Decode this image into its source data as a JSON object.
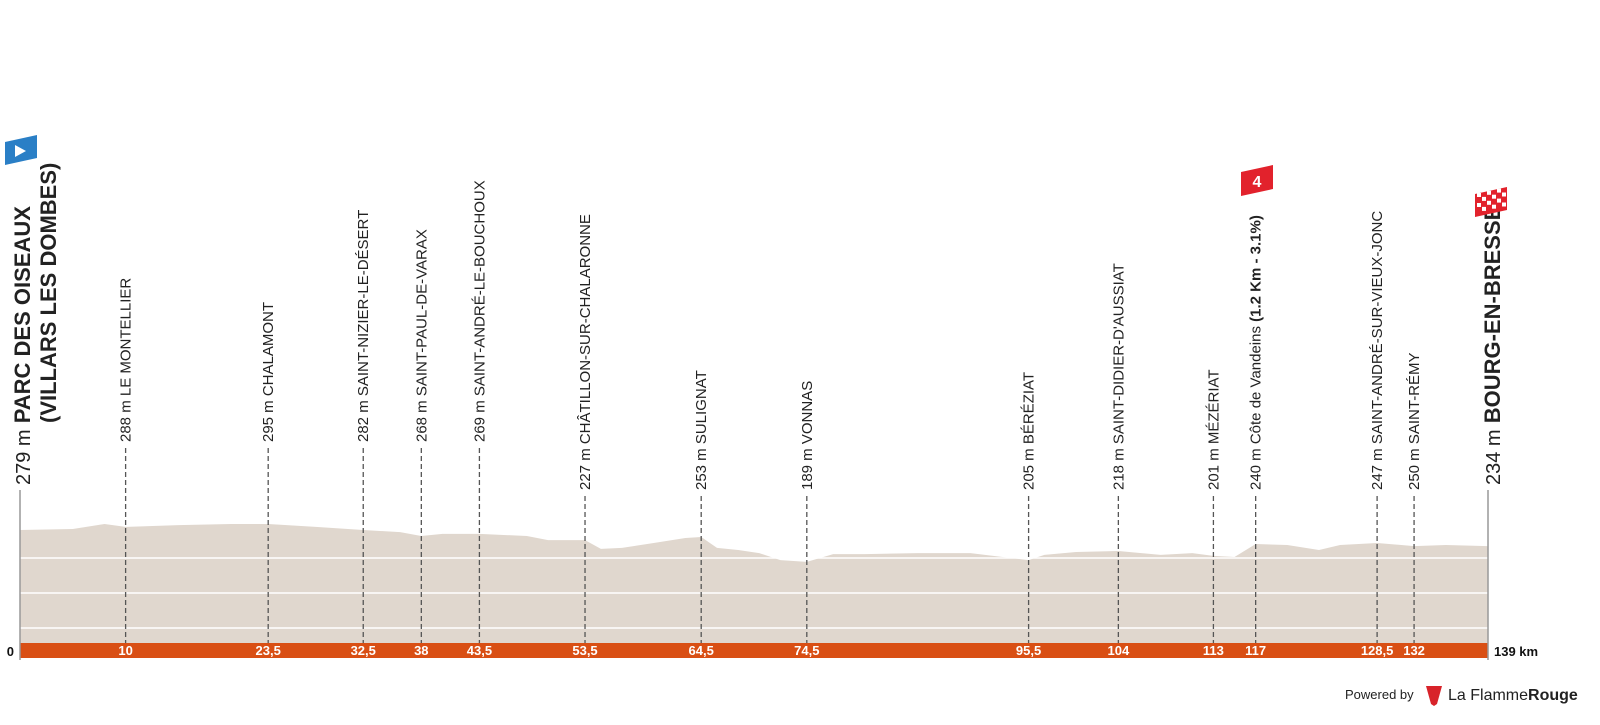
{
  "chart_data": {
    "type": "profile",
    "xlim": [
      0,
      139
    ],
    "ylim": [
      0,
      300
    ],
    "ygrid": [
      0,
      100,
      200
    ],
    "area_color": "#e0d7ce",
    "axis_color": "#d94f14",
    "x": [
      0,
      5,
      8,
      10,
      15,
      20,
      23.5,
      28,
      32.5,
      36,
      38,
      40,
      43.5,
      48,
      50,
      53.5,
      55,
      57,
      60,
      63,
      64.5,
      66,
      68,
      70,
      72,
      74.5,
      77,
      80,
      85,
      90,
      95.5,
      97,
      100,
      104,
      108,
      111,
      113,
      115,
      117,
      120,
      123,
      125,
      128.5,
      132,
      135,
      139
    ],
    "values": [
      280,
      283,
      297,
      289,
      294,
      297,
      297,
      289,
      280,
      274,
      263,
      269,
      269,
      263,
      251,
      251,
      226,
      229,
      243,
      257,
      260,
      229,
      223,
      214,
      194,
      189,
      211,
      211,
      214,
      214,
      194,
      209,
      217,
      220,
      209,
      214,
      206,
      203,
      240,
      237,
      223,
      237,
      243,
      234,
      237,
      234
    ],
    "xticks": [
      0,
      10,
      {
        "value": 23.5,
        "label": "23,5"
      },
      {
        "value": 32.5,
        "label": "32,5"
      },
      38,
      {
        "value": 43.5,
        "label": "43,5"
      },
      {
        "value": 53.5,
        "label": "53,5"
      },
      {
        "value": 64.5,
        "label": "64,5"
      },
      {
        "value": 74.5,
        "label": "74,5"
      },
      {
        "value": 95.5,
        "label": "95,5"
      },
      104,
      113,
      117,
      {
        "value": 128.5,
        "label": "128,5"
      },
      132,
      {
        "value": 139,
        "label": "139 km"
      }
    ],
    "start": {
      "altitude": "279 m",
      "name": "PARC DES OISEAUX",
      "name_line2": "(VILLARS LES DOMBES)"
    },
    "finish": {
      "altitude": "234 m",
      "name": "BOURG-EN-BRESSE"
    },
    "waypoints": [
      {
        "name": "288 m LE MONTELLIER"
      },
      {
        "name": "295 m CHALAMONT"
      },
      {
        "name": "282 m SAINT-NIZIER-LE-DÉSERT"
      },
      {
        "name": "268 m SAINT-PAUL-DE-VARAX"
      },
      {
        "name": "269 m SAINT-ANDRÉ-LE-BOUCHOUX"
      },
      {
        "name": "227 m CHÂTILLON-SUR-CHALARONNE"
      },
      {
        "name": "253 m SULIGNAT"
      },
      {
        "name": "189 m VONNAS"
      },
      {
        "name": "205 m BÉRÉZIAT"
      },
      {
        "name": "218 m SAINT-DIDIER-D'AUSSIAT"
      },
      {
        "name": "201 m MÉZÉRIAT"
      },
      {
        "name": "240 m Côte de Vandeins",
        "detail": "(1.2 Km - 3.1%)",
        "category": "4"
      },
      {
        "name": "247 m SAINT-ANDRÉ-SUR-VIEUX-JONC"
      },
      {
        "name": "250 m SAINT-RÉMY"
      }
    ]
  },
  "footer": {
    "powered": "Powered by",
    "brand_a": "La Flamme",
    "brand_b": "Rouge"
  }
}
